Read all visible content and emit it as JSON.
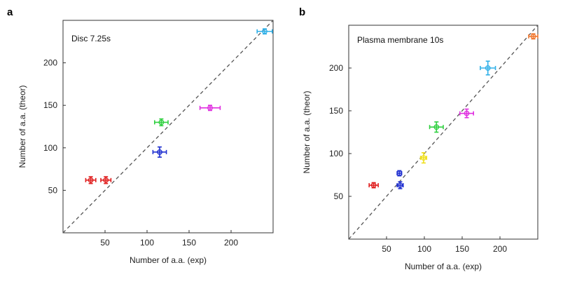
{
  "chart_data": [
    {
      "type": "scatter",
      "panel_label": "a",
      "title": "Disc 7.25s",
      "xlabel": "Number of a.a. (exp)",
      "ylabel": "Number of a.a. (theor)",
      "xlim": [
        0,
        250
      ],
      "ylim": [
        0,
        250
      ],
      "xticks": [
        50,
        100,
        150,
        200
      ],
      "yticks": [
        50,
        100,
        150,
        200
      ],
      "reference_line": "y = x",
      "grid": false,
      "points": [
        {
          "x": 33,
          "y": 62,
          "xerr": 6,
          "yerr": 4,
          "color": "#e02020"
        },
        {
          "x": 51,
          "y": 62,
          "xerr": 6,
          "yerr": 4,
          "color": "#e02020"
        },
        {
          "x": 115,
          "y": 95,
          "xerr": 8,
          "yerr": 6,
          "color": "#2030d0"
        },
        {
          "x": 117,
          "y": 130,
          "xerr": 8,
          "yerr": 4,
          "color": "#30d040"
        },
        {
          "x": 175,
          "y": 147,
          "xerr": 12,
          "yerr": 3,
          "color": "#e030e0"
        },
        {
          "x": 240,
          "y": 237,
          "xerr": 9,
          "yerr": 3,
          "color": "#30b0e8"
        }
      ]
    },
    {
      "type": "scatter",
      "panel_label": "b",
      "title": "Plasma membrane 10s",
      "xlabel": "Number of a.a. (exp)",
      "ylabel": "Number of a.a. (theor)",
      "xlim": [
        0,
        250
      ],
      "ylim": [
        0,
        250
      ],
      "xticks": [
        50,
        100,
        150,
        200
      ],
      "yticks": [
        50,
        100,
        150,
        200
      ],
      "reference_line": "y = x",
      "grid": false,
      "points": [
        {
          "x": 33,
          "y": 63,
          "xerr": 6,
          "yerr": 3,
          "color": "#e02020"
        },
        {
          "x": 68,
          "y": 63,
          "xerr": 4,
          "yerr": 4,
          "color": "#2030d0"
        },
        {
          "x": 67,
          "y": 77,
          "xerr": 3,
          "yerr": 3,
          "color": "#2030d0"
        },
        {
          "x": 99,
          "y": 95,
          "xerr": 4,
          "yerr": 6,
          "color": "#f0e020"
        },
        {
          "x": 116,
          "y": 131,
          "xerr": 9,
          "yerr": 6,
          "color": "#30d040"
        },
        {
          "x": 156,
          "y": 147,
          "xerr": 9,
          "yerr": 5,
          "color": "#e030e0"
        },
        {
          "x": 184,
          "y": 200,
          "xerr": 10,
          "yerr": 8,
          "color": "#30b0e8"
        },
        {
          "x": 244,
          "y": 237,
          "xerr": 6,
          "yerr": 3,
          "color": "#f07830"
        }
      ]
    }
  ]
}
